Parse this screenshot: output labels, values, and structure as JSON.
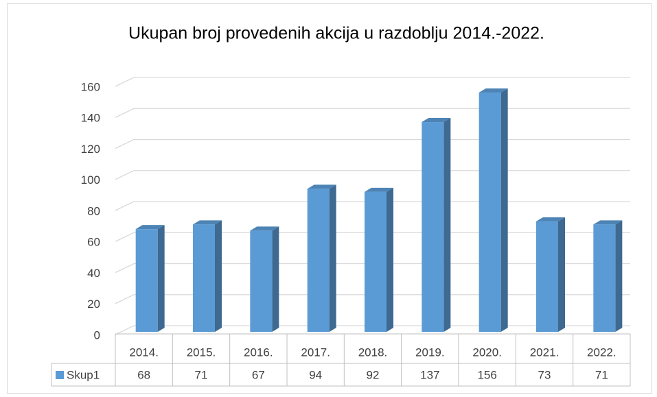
{
  "chart_data": {
    "type": "bar3d",
    "title": "Ukupan broj provedenih akcija u razdoblju 2014.-2022.",
    "categories": [
      "2014.",
      "2015.",
      "2016.",
      "2017.",
      "2018.",
      "2019.",
      "2020.",
      "2021.",
      "2022."
    ],
    "series": [
      {
        "name": "Skup1",
        "color": "#5b9bd5",
        "values": [
          68,
          71,
          67,
          94,
          92,
          137,
          156,
          73,
          71
        ]
      }
    ],
    "ylim": [
      0,
      160
    ],
    "yticks": [
      0,
      20,
      40,
      60,
      80,
      100,
      120,
      140,
      160
    ],
    "grid": true,
    "data_table": true
  }
}
